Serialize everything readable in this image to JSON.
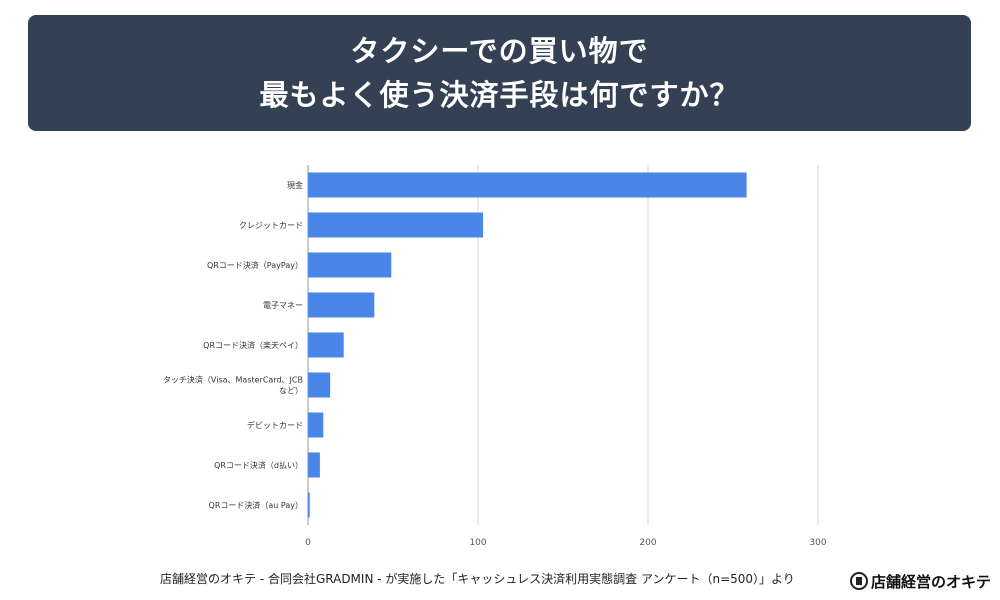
{
  "title": {
    "line1": "タクシーでの買い物で",
    "line2": "最もよく使う決済手段は何ですか？"
  },
  "footer": {
    "source": "店舗経営のオキテ - 合同会社GRADMIN - が実施した「キャッシュレス決済利用実態調査 アンケート（n=500）」より",
    "logo_text": "店舗経営のオキテ",
    "logo_icon": "shop-icon"
  },
  "colors": {
    "banner": "#344154",
    "bar": "#4a86e8",
    "grid": "#d9d9d9"
  },
  "chart_data": {
    "type": "bar",
    "orientation": "horizontal",
    "categories": [
      "現金",
      "クレジットカード",
      "QRコード決済（PayPay）",
      "電子マネー",
      "QRコード決済（楽天ペイ）",
      "タッチ決済（Visa、MasterCard、JCBなど）",
      "デビットカード",
      "QRコード決済（d払い）",
      "QRコード決済（au Pay）"
    ],
    "category_lines": [
      [
        "現金"
      ],
      [
        "クレジットカード"
      ],
      [
        "QRコード決済（PayPay）"
      ],
      [
        "電子マネー"
      ],
      [
        "QRコード決済（楽天ペイ）"
      ],
      [
        "タッチ決済（Visa、MasterCard、JCB",
        "など）"
      ],
      [
        "デビットカード"
      ],
      [
        "QRコード決済（d払い）"
      ],
      [
        "QRコード決済（au Pay）"
      ]
    ],
    "values": [
      258,
      103,
      49,
      39,
      21,
      13,
      9,
      7,
      1
    ],
    "xlim": [
      0,
      300
    ],
    "xticks": [
      0,
      100,
      200,
      300
    ],
    "grid": true
  }
}
